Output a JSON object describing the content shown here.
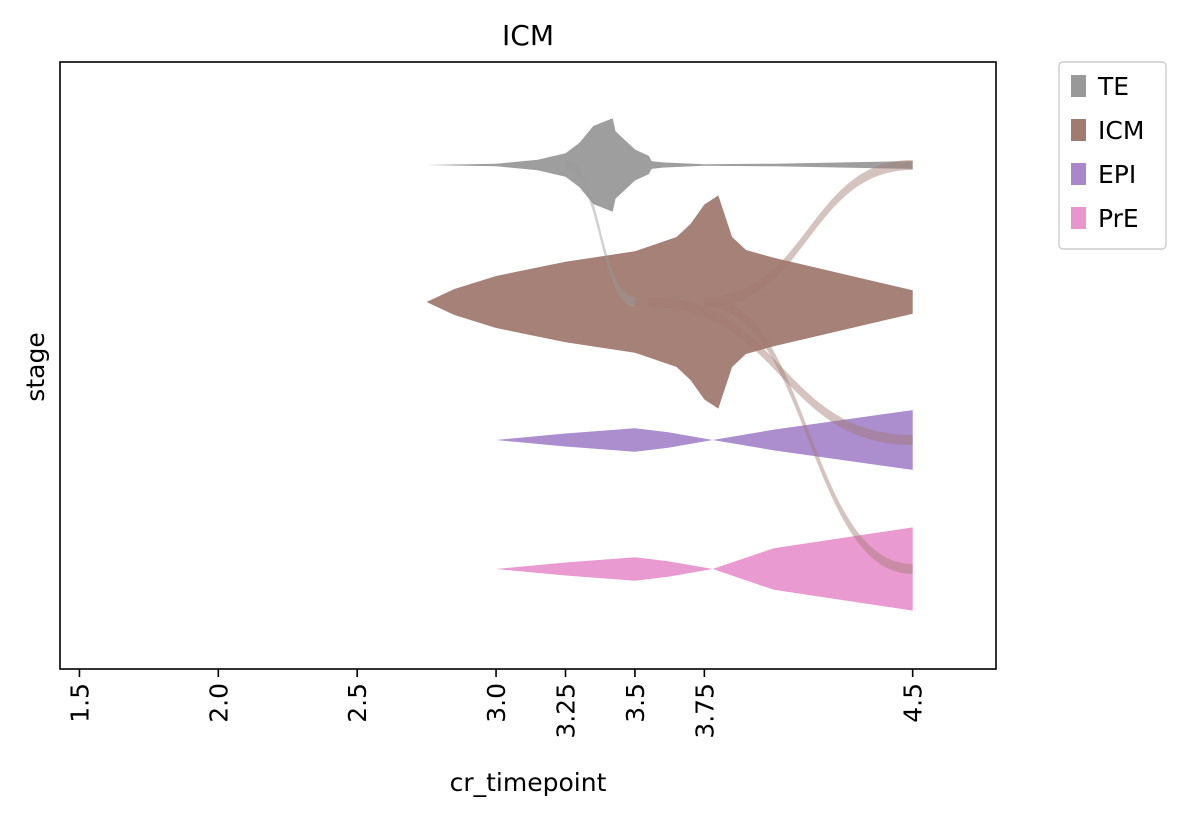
{
  "chart_data": {
    "type": "area",
    "title": "ICM",
    "xlabel": "cr_timepoint",
    "ylabel": "stage",
    "xlim": [
      1.43,
      4.8
    ],
    "xticks": [
      1.5,
      2.0,
      2.5,
      3.0,
      3.25,
      3.5,
      3.75,
      4.5
    ],
    "xtick_labels": [
      "1.5",
      "2.0",
      "2.5",
      "3.0",
      "3.25",
      "3.5",
      "3.75",
      "4.5"
    ],
    "yticks_shown": false,
    "grid": false,
    "legend_position": "outside-top-right",
    "legend": [
      {
        "label": "TE",
        "color": "#999999"
      },
      {
        "label": "ICM",
        "color": "#a17a70"
      },
      {
        "label": "EPI",
        "color": "#a887cb"
      },
      {
        "label": "PrE",
        "color": "#e895cd"
      }
    ],
    "series": [
      {
        "name": "TE",
        "color": "#999999",
        "x": [
          2.75,
          3.0,
          3.15,
          3.25,
          3.3,
          3.35,
          3.42,
          3.43,
          3.5,
          3.55,
          3.56,
          3.6,
          3.75,
          4.0,
          4.5
        ],
        "half": [
          0.0,
          0.01,
          0.04,
          0.09,
          0.17,
          0.3,
          0.36,
          0.26,
          0.12,
          0.07,
          0.03,
          0.02,
          0.005,
          0.01,
          0.03
        ]
      },
      {
        "name": "ICM",
        "color": "#a17a70",
        "x": [
          2.75,
          2.85,
          3.0,
          3.25,
          3.5,
          3.65,
          3.7,
          3.75,
          3.8,
          3.85,
          3.9,
          4.0,
          4.5
        ],
        "half": [
          0.0,
          0.1,
          0.2,
          0.31,
          0.39,
          0.5,
          0.6,
          0.75,
          0.82,
          0.5,
          0.4,
          0.34,
          0.09
        ]
      },
      {
        "name": "EPI",
        "color": "#a887cb",
        "x": [
          3.0,
          3.25,
          3.5,
          3.62,
          3.78,
          4.0,
          4.5
        ],
        "half": [
          0.0,
          0.05,
          0.09,
          0.06,
          0.0,
          0.08,
          0.23
        ]
      },
      {
        "name": "PrE",
        "color": "#e895cd",
        "x": [
          3.0,
          3.25,
          3.5,
          3.62,
          3.78,
          4.0,
          4.5
        ],
        "half": [
          0.0,
          0.05,
          0.09,
          0.06,
          0.0,
          0.16,
          0.32
        ]
      }
    ],
    "transitions": [
      {
        "from": "TE",
        "to": "ICM",
        "x_start": 3.25,
        "x_end": 3.5
      },
      {
        "from": "ICM",
        "to": "TE",
        "x_start": 3.75,
        "x_end": 4.5
      },
      {
        "from": "ICM",
        "to": "EPI",
        "x_start": 3.55,
        "x_end": 4.5
      },
      {
        "from": "ICM",
        "to": "PrE",
        "x_start": 3.75,
        "x_end": 4.5
      }
    ]
  }
}
